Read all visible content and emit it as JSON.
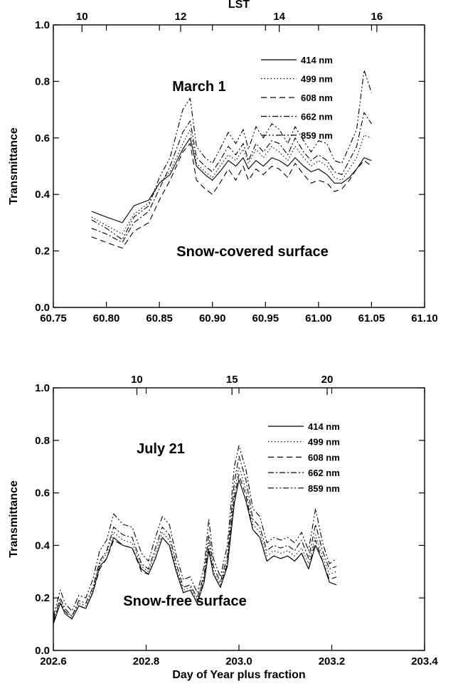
{
  "chart_data": [
    {
      "type": "line",
      "title": "",
      "annotation": "March 1",
      "surface_label": "Snow-covered surface",
      "xlabel": "",
      "ylabel": "Transmittance",
      "top_axis_label": "LST",
      "xlim": [
        60.75,
        61.1
      ],
      "ylim": [
        0.0,
        1.0
      ],
      "xticks": [
        "60.75",
        "60.80",
        "60.85",
        "60.90",
        "60.95",
        "61.00",
        "61.05",
        "61.10"
      ],
      "yticks": [
        "0.0",
        "0.2",
        "0.4",
        "0.6",
        "0.8",
        "1.0"
      ],
      "top_ticks": [
        {
          "label": "10",
          "x": 60.777
        },
        {
          "label": "12",
          "x": 60.87
        },
        {
          "label": "14",
          "x": 60.963
        },
        {
          "label": "16",
          "x": 61.055
        }
      ],
      "grid": false,
      "legend_position": "top-right",
      "x": [
        60.786,
        60.8,
        60.815,
        60.826,
        60.84,
        60.85,
        60.86,
        60.872,
        60.879,
        60.885,
        60.893,
        60.9,
        60.907,
        60.915,
        60.922,
        60.929,
        60.934,
        60.941,
        60.948,
        60.956,
        60.963,
        60.971,
        60.978,
        60.986,
        60.993,
        61.0,
        61.008,
        61.015,
        61.022,
        61.029,
        61.036,
        61.043,
        61.05
      ],
      "series": [
        {
          "name": "414 nm",
          "dash": "solid",
          "values": [
            0.34,
            0.32,
            0.3,
            0.36,
            0.38,
            0.44,
            0.47,
            0.56,
            0.6,
            0.5,
            0.47,
            0.45,
            0.48,
            0.52,
            0.5,
            0.53,
            0.49,
            0.52,
            0.5,
            0.53,
            0.52,
            0.5,
            0.53,
            0.5,
            0.48,
            0.49,
            0.47,
            0.44,
            0.44,
            0.46,
            0.49,
            0.53,
            0.52
          ]
        },
        {
          "name": "499 nm",
          "dash": "dotted",
          "values": [
            0.32,
            0.29,
            0.26,
            0.33,
            0.37,
            0.44,
            0.48,
            0.58,
            0.63,
            0.51,
            0.48,
            0.46,
            0.5,
            0.54,
            0.52,
            0.56,
            0.51,
            0.56,
            0.53,
            0.57,
            0.55,
            0.52,
            0.57,
            0.53,
            0.5,
            0.52,
            0.5,
            0.46,
            0.45,
            0.49,
            0.53,
            0.61,
            0.6
          ]
        },
        {
          "name": "608 nm",
          "dash": "dashed",
          "values": [
            0.25,
            0.23,
            0.21,
            0.27,
            0.3,
            0.38,
            0.45,
            0.55,
            0.58,
            0.45,
            0.42,
            0.4,
            0.44,
            0.49,
            0.45,
            0.5,
            0.45,
            0.49,
            0.47,
            0.5,
            0.49,
            0.46,
            0.51,
            0.47,
            0.44,
            0.45,
            0.44,
            0.41,
            0.42,
            0.45,
            0.49,
            0.52,
            0.5
          ]
        },
        {
          "name": "662 nm",
          "dash": "dashdot",
          "values": [
            0.28,
            0.26,
            0.23,
            0.3,
            0.34,
            0.42,
            0.5,
            0.62,
            0.66,
            0.53,
            0.5,
            0.48,
            0.52,
            0.57,
            0.54,
            0.58,
            0.52,
            0.58,
            0.55,
            0.59,
            0.58,
            0.54,
            0.6,
            0.55,
            0.52,
            0.54,
            0.52,
            0.48,
            0.47,
            0.52,
            0.57,
            0.69,
            0.65
          ]
        },
        {
          "name": "859 nm",
          "dash": "dashdotdot",
          "values": [
            0.31,
            0.28,
            0.24,
            0.32,
            0.36,
            0.46,
            0.53,
            0.7,
            0.74,
            0.57,
            0.53,
            0.51,
            0.56,
            0.62,
            0.58,
            0.63,
            0.56,
            0.64,
            0.6,
            0.65,
            0.63,
            0.58,
            0.64,
            0.59,
            0.55,
            0.59,
            0.58,
            0.52,
            0.51,
            0.57,
            0.63,
            0.84,
            0.76
          ]
        }
      ]
    },
    {
      "type": "line",
      "title": "",
      "annotation": "July 21",
      "surface_label": "Snow-free surface",
      "xlabel": "Day of Year plus fraction",
      "ylabel": "Transmittance",
      "top_axis_label": "",
      "xlim": [
        202.6,
        203.4
      ],
      "ylim": [
        0.0,
        1.0
      ],
      "xticks": [
        "202.6",
        "202.8",
        "203.0",
        "203.2",
        "203.4"
      ],
      "yticks": [
        "0.0",
        "0.2",
        "0.4",
        "0.6",
        "0.8",
        "1.0"
      ],
      "top_ticks": [
        {
          "label": "10",
          "x": 202.78
        },
        {
          "label": "15",
          "x": 202.985
        },
        {
          "label": "20",
          "x": 203.19
        }
      ],
      "grid": false,
      "legend_position": "top-right",
      "x": [
        202.6,
        202.615,
        202.625,
        202.64,
        202.655,
        202.67,
        202.685,
        202.7,
        202.715,
        202.73,
        202.75,
        202.77,
        202.79,
        202.805,
        202.82,
        202.835,
        202.85,
        202.865,
        202.88,
        202.895,
        202.91,
        202.925,
        202.935,
        202.945,
        202.96,
        202.975,
        202.99,
        203.0,
        203.015,
        203.03,
        203.045,
        203.06,
        203.075,
        203.09,
        203.105,
        203.12,
        203.135,
        203.15,
        203.165,
        203.18,
        203.195,
        203.21
      ],
      "series": [
        {
          "name": "414 nm",
          "dash": "solid",
          "values": [
            0.1,
            0.18,
            0.14,
            0.12,
            0.17,
            0.16,
            0.22,
            0.32,
            0.35,
            0.43,
            0.4,
            0.39,
            0.31,
            0.29,
            0.35,
            0.43,
            0.4,
            0.3,
            0.22,
            0.23,
            0.18,
            0.26,
            0.38,
            0.29,
            0.24,
            0.32,
            0.56,
            0.65,
            0.57,
            0.46,
            0.43,
            0.34,
            0.36,
            0.35,
            0.36,
            0.34,
            0.37,
            0.31,
            0.4,
            0.34,
            0.26,
            0.25
          ]
        },
        {
          "name": "499 nm",
          "dash": "dotted",
          "values": [
            0.11,
            0.19,
            0.15,
            0.13,
            0.18,
            0.17,
            0.23,
            0.33,
            0.37,
            0.45,
            0.42,
            0.41,
            0.32,
            0.3,
            0.37,
            0.45,
            0.42,
            0.31,
            0.23,
            0.24,
            0.19,
            0.28,
            0.41,
            0.3,
            0.25,
            0.34,
            0.6,
            0.7,
            0.61,
            0.48,
            0.45,
            0.36,
            0.38,
            0.37,
            0.38,
            0.36,
            0.39,
            0.33,
            0.44,
            0.36,
            0.29,
            0.3
          ]
        },
        {
          "name": "608 nm",
          "dash": "dashed",
          "values": [
            0.11,
            0.18,
            0.15,
            0.12,
            0.17,
            0.16,
            0.22,
            0.31,
            0.35,
            0.42,
            0.4,
            0.39,
            0.3,
            0.29,
            0.35,
            0.43,
            0.4,
            0.3,
            0.22,
            0.23,
            0.18,
            0.27,
            0.39,
            0.29,
            0.24,
            0.33,
            0.58,
            0.67,
            0.59,
            0.46,
            0.43,
            0.34,
            0.36,
            0.35,
            0.36,
            0.34,
            0.37,
            0.31,
            0.42,
            0.34,
            0.27,
            0.28
          ]
        },
        {
          "name": "662 nm",
          "dash": "dashdot",
          "values": [
            0.12,
            0.2,
            0.16,
            0.13,
            0.19,
            0.18,
            0.24,
            0.34,
            0.38,
            0.47,
            0.44,
            0.43,
            0.33,
            0.31,
            0.39,
            0.47,
            0.44,
            0.33,
            0.24,
            0.25,
            0.2,
            0.29,
            0.44,
            0.32,
            0.26,
            0.36,
            0.64,
            0.74,
            0.65,
            0.5,
            0.47,
            0.38,
            0.4,
            0.39,
            0.4,
            0.38,
            0.42,
            0.35,
            0.48,
            0.38,
            0.31,
            0.32
          ]
        },
        {
          "name": "859 nm",
          "dash": "dashdotdot",
          "values": [
            0.13,
            0.23,
            0.18,
            0.15,
            0.21,
            0.2,
            0.27,
            0.38,
            0.42,
            0.52,
            0.48,
            0.47,
            0.37,
            0.34,
            0.43,
            0.51,
            0.48,
            0.36,
            0.27,
            0.28,
            0.22,
            0.32,
            0.5,
            0.35,
            0.28,
            0.4,
            0.7,
            0.78,
            0.69,
            0.54,
            0.51,
            0.41,
            0.43,
            0.42,
            0.43,
            0.41,
            0.45,
            0.38,
            0.54,
            0.41,
            0.33,
            0.35
          ]
        }
      ]
    }
  ]
}
